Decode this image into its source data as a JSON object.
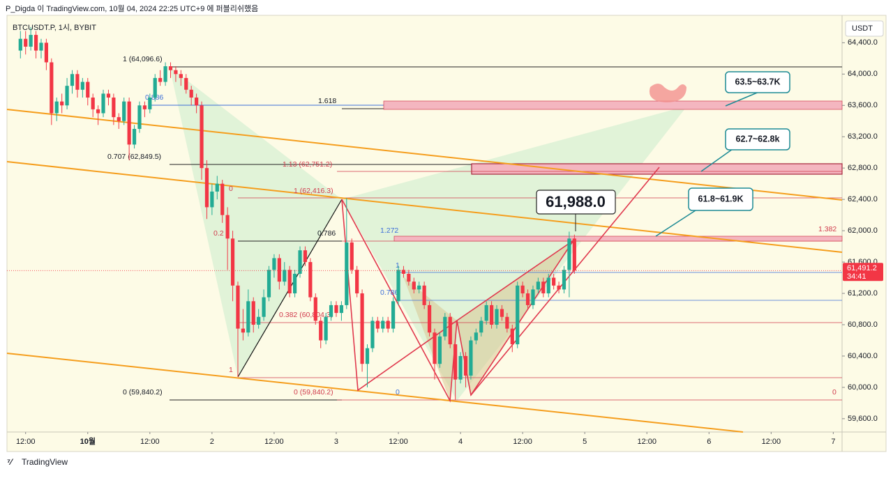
{
  "header": {
    "publisher": "P_Digda 이 TradingView.com, 10월 04, 2024 22:25 UTC+9 에 퍼블리쉬했음",
    "logo": "TradingView"
  },
  "chart_data": {
    "type": "candlestick",
    "title": "BTCUSDT.P, 1시, BYBIT",
    "currency": "USDT",
    "up_color": "#22ab94",
    "down_color": "#f23645",
    "last_price_label": "61,491.2",
    "countdown": "34:41",
    "highlight_label": "61,988.0",
    "fib_labels": [
      "1 (64,096.6)",
      "0.886",
      "0.707 (62,849.5)",
      "0 (59,840.2)",
      "1.618",
      "1.13 (62,751.2)",
      "1 (62,416.3)",
      "0",
      "0.786",
      "0.2",
      "1",
      "0.382 (60,804.3)",
      "0 (59,840.2)",
      "1.272",
      "1",
      "0.786",
      "0",
      "0",
      "1.382"
    ],
    "callouts": [
      "63.5~63.7K",
      "62.7~62.8k",
      "61.8~61.9K"
    ],
    "xlim": [
      -15.6,
      145.7
    ],
    "ylim": [
      59430,
      64750
    ],
    "xticks": [
      {
        "value": -12,
        "label": "12:00"
      },
      {
        "value": 0,
        "label": "10월"
      },
      {
        "value": 12,
        "label": "12:00"
      },
      {
        "value": 24,
        "label": "2"
      },
      {
        "value": 36,
        "label": "12:00"
      },
      {
        "value": 48,
        "label": "3"
      },
      {
        "value": 60,
        "label": "12:00"
      },
      {
        "value": 72,
        "label": "4"
      },
      {
        "value": 84,
        "label": "12:00"
      },
      {
        "value": 96,
        "label": "5"
      },
      {
        "value": 108,
        "label": "12:00"
      },
      {
        "value": 120,
        "label": "6"
      },
      {
        "value": 132,
        "label": "12:00"
      },
      {
        "value": 144,
        "label": "7"
      }
    ],
    "yticks": [
      {
        "value": 64400,
        "label": "64,400.0"
      },
      {
        "value": 64000,
        "label": "64,000.0"
      },
      {
        "value": 63600,
        "label": "63,600.0"
      },
      {
        "value": 63200,
        "label": "63,200.0"
      },
      {
        "value": 62800,
        "label": "62,800.0"
      },
      {
        "value": 62400,
        "label": "62,400.0"
      },
      {
        "value": 62000,
        "label": "62,000.0"
      },
      {
        "value": 61600,
        "label": "61,600.0"
      },
      {
        "value": 61200,
        "label": "61,200.0"
      },
      {
        "value": 60800,
        "label": "60,800.0"
      },
      {
        "value": 60400,
        "label": "60,400.0"
      },
      {
        "value": 60000,
        "label": "60,000.0"
      },
      {
        "value": 59600,
        "label": "59,600.0"
      }
    ],
    "x": [
      -13,
      -12,
      -11,
      -10,
      -9,
      -8,
      -7,
      -6,
      -5,
      -4,
      -3,
      -2,
      -1,
      0,
      1,
      2,
      3,
      4,
      5,
      6,
      7,
      8,
      9,
      10,
      11,
      12,
      13,
      14,
      15,
      16,
      17,
      18,
      19,
      20,
      21,
      22,
      23,
      24,
      25,
      26,
      27,
      28,
      29,
      30,
      31,
      32,
      33,
      34,
      35,
      36,
      37,
      38,
      39,
      40,
      41,
      42,
      43,
      44,
      45,
      46,
      47,
      48,
      49,
      50,
      51,
      52,
      53,
      54,
      55,
      56,
      57,
      58,
      59,
      60,
      61,
      62,
      63,
      64,
      65,
      66,
      67,
      68,
      69,
      70,
      71,
      72,
      73,
      74,
      75,
      76,
      77,
      78,
      79,
      80,
      81,
      82,
      83,
      84,
      85,
      86,
      87,
      88,
      89,
      90,
      91,
      92,
      93,
      94
    ],
    "candles": [
      [
        64300,
        64550,
        64200,
        64450
      ],
      [
        64450,
        64550,
        64250,
        64350
      ],
      [
        64350,
        64600,
        64300,
        64500
      ],
      [
        64500,
        64550,
        64200,
        64300
      ],
      [
        64300,
        64450,
        64200,
        64400
      ],
      [
        64400,
        64450,
        64050,
        64150
      ],
      [
        64150,
        64200,
        63350,
        63500
      ],
      [
        63500,
        63700,
        63400,
        63650
      ],
      [
        63650,
        63750,
        63500,
        63600
      ],
      [
        63600,
        63950,
        63550,
        63850
      ],
      [
        63850,
        64050,
        63750,
        64000
      ],
      [
        64000,
        64050,
        63700,
        63800
      ],
      [
        63800,
        63950,
        63700,
        63900
      ],
      [
        63900,
        63950,
        63600,
        63700
      ],
      [
        63700,
        63750,
        63450,
        63550
      ],
      [
        63550,
        63600,
        63350,
        63500
      ],
      [
        63500,
        63800,
        63450,
        63750
      ],
      [
        63750,
        63800,
        63600,
        63700
      ],
      [
        63700,
        63750,
        63350,
        63450
      ],
      [
        63450,
        63500,
        63300,
        63400
      ],
      [
        63400,
        63700,
        63350,
        63650
      ],
      [
        63650,
        63700,
        62900,
        63100
      ],
      [
        63100,
        63350,
        63050,
        63300
      ],
      [
        63300,
        63650,
        63250,
        63600
      ],
      [
        63600,
        63650,
        63450,
        63550
      ],
      [
        63550,
        63750,
        63500,
        63700
      ],
      [
        63700,
        64000,
        63650,
        63950
      ],
      [
        63950,
        64050,
        63850,
        63900
      ],
      [
        63900,
        64150,
        63850,
        64100
      ],
      [
        64100,
        64150,
        63950,
        64050
      ],
      [
        64050,
        64100,
        63900,
        64000
      ],
      [
        64000,
        64050,
        63850,
        63950
      ],
      [
        63950,
        64000,
        63750,
        63800
      ],
      [
        63800,
        63850,
        63600,
        63700
      ],
      [
        63700,
        63750,
        63500,
        63600
      ],
      [
        63600,
        63650,
        62650,
        62800
      ],
      [
        62800,
        62900,
        62150,
        62300
      ],
      [
        62300,
        62600,
        62200,
        62500
      ],
      [
        62500,
        62700,
        62400,
        62600
      ],
      [
        62600,
        62650,
        62100,
        62200
      ],
      [
        62200,
        62300,
        61500,
        61900
      ],
      [
        61900,
        62000,
        61100,
        61300
      ],
      [
        61300,
        61350,
        60133,
        60750
      ],
      [
        60750,
        61000,
        60600,
        60700
      ],
      [
        60700,
        61250,
        60650,
        61100
      ],
      [
        61100,
        61150,
        60700,
        60800
      ],
      [
        60800,
        61000,
        60750,
        60900
      ],
      [
        60900,
        61250,
        60850,
        61150
      ],
      [
        61150,
        61550,
        61100,
        61500
      ],
      [
        61500,
        61700,
        61400,
        61650
      ],
      [
        61650,
        61700,
        61250,
        61350
      ],
      [
        61350,
        61600,
        61300,
        61500
      ],
      [
        61500,
        61550,
        61150,
        61200
      ],
      [
        61200,
        61500,
        61150,
        61450
      ],
      [
        61450,
        61800,
        61400,
        61750
      ],
      [
        61750,
        61800,
        61550,
        61600
      ],
      [
        61600,
        61650,
        61100,
        61150
      ],
      [
        61150,
        61200,
        60800,
        60850
      ],
      [
        60850,
        60900,
        60500,
        60600
      ],
      [
        60600,
        60950,
        60550,
        60900
      ],
      [
        60900,
        61100,
        60850,
        61050
      ],
      [
        61050,
        61100,
        60900,
        60950
      ],
      [
        60950,
        61100,
        60850,
        61050
      ],
      [
        61050,
        62416.3,
        61000,
        61850
      ],
      [
        61850,
        61900,
        61450,
        61500
      ],
      [
        61500,
        61550,
        61150,
        61200
      ],
      [
        61200,
        61250,
        60200,
        60300
      ],
      [
        60300,
        60550,
        60000,
        60500
      ],
      [
        60500,
        60900,
        60450,
        60850
      ],
      [
        60850,
        60900,
        60700,
        60750
      ],
      [
        60750,
        60900,
        60700,
        60850
      ],
      [
        60850,
        60900,
        60700,
        60750
      ],
      [
        60750,
        61150,
        60700,
        61100
      ],
      [
        61100,
        61550,
        61050,
        61500
      ],
      [
        61500,
        61550,
        61400,
        61450
      ],
      [
        61450,
        61500,
        61300,
        61350
      ],
      [
        61350,
        61400,
        61200,
        61250
      ],
      [
        61250,
        61350,
        61200,
        61300
      ],
      [
        61300,
        61350,
        61000,
        61050
      ],
      [
        61050,
        61100,
        60650,
        60700
      ],
      [
        60700,
        60750,
        60100,
        60300
      ],
      [
        60300,
        60700,
        60250,
        60650
      ],
      [
        60650,
        60950,
        60600,
        60900
      ],
      [
        60900,
        60950,
        60500,
        60550
      ],
      [
        60550,
        60600,
        59840.2,
        60100
      ],
      [
        60100,
        60450,
        60050,
        60400
      ],
      [
        60400,
        60450,
        60000,
        60150
      ],
      [
        60150,
        60650,
        60100,
        60600
      ],
      [
        60600,
        60750,
        60550,
        60700
      ],
      [
        60700,
        60900,
        60650,
        60850
      ],
      [
        60850,
        61100,
        60800,
        61050
      ],
      [
        61050,
        61100,
        60750,
        60800
      ],
      [
        60800,
        61050,
        60750,
        61000
      ],
      [
        61000,
        61050,
        60850,
        60900
      ],
      [
        60900,
        60950,
        60700,
        60750
      ],
      [
        60750,
        60800,
        60450,
        60550
      ],
      [
        60550,
        61350,
        60500,
        61300
      ],
      [
        61300,
        61350,
        61150,
        61200
      ],
      [
        61200,
        61250,
        61000,
        61050
      ],
      [
        61050,
        61300,
        61000,
        61250
      ],
      [
        61250,
        61400,
        61200,
        61350
      ],
      [
        61350,
        61400,
        61150,
        61200
      ],
      [
        61200,
        61450,
        61150,
        61400
      ],
      [
        61400,
        61450,
        61250,
        61300
      ],
      [
        61300,
        61350,
        61200,
        61250
      ],
      [
        61250,
        61550,
        61200,
        61500
      ],
      [
        61500,
        61988,
        61150,
        61900
      ],
      [
        61900,
        61950,
        61450,
        61491.2
      ]
    ]
  }
}
